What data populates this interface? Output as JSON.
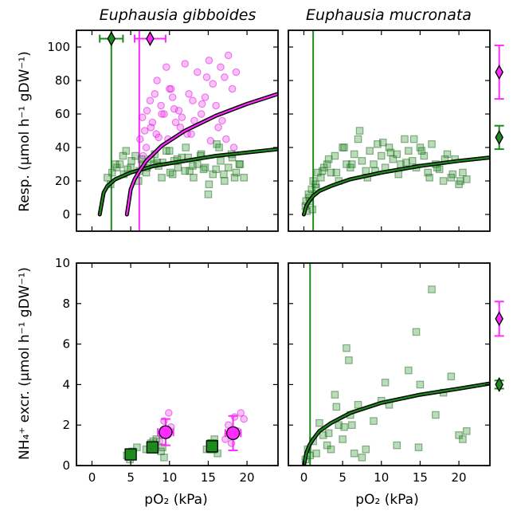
{
  "colors": {
    "green": "#1e8a1e",
    "green_dark": "#0a5c0a",
    "magenta": "#ff2aff",
    "magenta_dark": "#cc00cc",
    "frame": "#000000"
  },
  "labels": {
    "title_left": "Euphausia gibboides",
    "title_right": "Euphausia mucronata",
    "ylabel_top": "Resp. (µmol h⁻¹ gDW⁻¹)",
    "ylabel_bottom": "NH₄⁺ excr. (µmol h⁻¹ gDW⁻¹)",
    "xlabel_left": "pO₂ (kPa)",
    "xlabel_right": "pO₂ (kPa)"
  },
  "chart_data": [
    {
      "panel": "top-left",
      "type": "scatter",
      "title": "Euphausia gibboides",
      "ylabel": "Resp. (µmol h⁻¹ gDW⁻¹)",
      "xlim": [
        -2,
        24
      ],
      "ylim": [
        -10,
        110
      ],
      "xticks": [
        0,
        5,
        10,
        15,
        20
      ],
      "yticks": [
        0,
        20,
        40,
        60,
        80,
        100
      ],
      "show_xtick_labels": false,
      "series": [
        {
          "color": "magenta",
          "marker": "circle",
          "x": [
            6.2,
            6.5,
            6.8,
            7.1,
            7.5,
            7.8,
            8.1,
            8.4,
            8.9,
            9.3,
            9.6,
            10.0,
            10.4,
            10.8,
            11.2,
            11.6,
            12.0,
            12.5,
            13.0,
            13.6,
            14.1,
            14.6,
            15.1,
            15.6,
            16.0,
            16.6,
            17.1,
            17.6,
            18.1,
            18.6,
            7.0,
            7.6,
            8.3,
            9.0,
            9.8,
            10.6,
            11.4,
            12.3,
            13.2,
            14.2,
            15.3,
            16.3,
            17.3,
            18.3,
            6.6,
            8.6,
            10.2,
            12.8,
            14.8,
            16.8
          ],
          "y": [
            45,
            58,
            50,
            62,
            68,
            55,
            72,
            80,
            65,
            60,
            88,
            75,
            70,
            55,
            62,
            58,
            90,
            72,
            68,
            85,
            60,
            70,
            92,
            78,
            65,
            88,
            82,
            95,
            75,
            85,
            40,
            52,
            48,
            60,
            45,
            63,
            52,
            48,
            56,
            66,
            44,
            52,
            45,
            40,
            35,
            46,
            75,
            48,
            82,
            56
          ]
        },
        {
          "color": "green",
          "marker": "square",
          "x": [
            2.0,
            2.6,
            3.2,
            3.6,
            4.1,
            4.6,
            5.1,
            5.6,
            6.1,
            6.6,
            7.1,
            7.6,
            8.1,
            8.6,
            9.1,
            9.6,
            10.1,
            10.6,
            11.1,
            11.6,
            12.1,
            12.6,
            13.1,
            13.6,
            14.1,
            14.6,
            15.1,
            15.6,
            16.1,
            16.6,
            17.1,
            17.6,
            18.1,
            18.6,
            19.1,
            19.6,
            3.0,
            4.0,
            5.0,
            6.0,
            7.0,
            8.0,
            9.0,
            10.0,
            11.0,
            12.0,
            13.0,
            14.0,
            15.0,
            16.0,
            17.0,
            18.0,
            19.0,
            2.4,
            4.4,
            6.4,
            8.4,
            10.4,
            12.4,
            14.4,
            16.4,
            18.4
          ],
          "y": [
            22,
            25,
            28,
            30,
            24,
            27,
            32,
            35,
            26,
            30,
            28,
            33,
            36,
            29,
            31,
            38,
            25,
            32,
            28,
            34,
            40,
            26,
            22,
            30,
            36,
            28,
            18,
            24,
            42,
            32,
            20,
            28,
            34,
            25,
            30,
            22,
            30,
            35,
            28,
            20,
            25,
            30,
            22,
            38,
            33,
            26,
            29,
            35,
            12,
            27,
            24,
            36,
            30,
            18,
            38,
            33,
            31,
            24,
            34,
            27,
            40,
            22
          ]
        }
      ],
      "fits": [
        {
          "color": "green",
          "x": [
            1.0,
            1.5,
            2.0,
            3.0,
            5.0,
            8.0,
            12.0,
            16.0,
            20.0,
            24.0
          ],
          "y": [
            0,
            13,
            17,
            21,
            25,
            29,
            32,
            35,
            37,
            39
          ]
        },
        {
          "color": "magenta",
          "x": [
            4.5,
            5.0,
            5.5,
            6.0,
            7.0,
            9.0,
            12.0,
            16.0,
            20.0,
            24.0
          ],
          "y": [
            0,
            15,
            21,
            25,
            32,
            41,
            50,
            59,
            66,
            72
          ]
        }
      ],
      "vlines": [
        {
          "color": "green",
          "x": 2.5
        },
        {
          "color": "magenta",
          "x": 6.1
        }
      ],
      "points": [
        {
          "color": "green",
          "marker": "diamond",
          "x": 2.5,
          "y": 105,
          "xerr": 1.5
        },
        {
          "color": "magenta",
          "marker": "diamond",
          "x": 7.5,
          "y": 105,
          "xerr": 2.0
        }
      ]
    },
    {
      "panel": "top-right",
      "type": "scatter",
      "title": "Euphausia mucronata",
      "xlim": [
        -2,
        24
      ],
      "ylim": [
        -10,
        110
      ],
      "xticks": [
        0,
        5,
        10,
        15,
        20
      ],
      "yticks": [
        0,
        20,
        40,
        60,
        80,
        100
      ],
      "show_xtick_labels": false,
      "show_ytick_labels": false,
      "series": [
        {
          "color": "green",
          "marker": "square",
          "x": [
            0.2,
            0.4,
            0.6,
            0.8,
            1.0,
            1.2,
            1.5,
            1.8,
            2.2,
            2.6,
            3.0,
            3.5,
            4.0,
            4.5,
            5.0,
            5.5,
            6.0,
            6.5,
            7.0,
            7.5,
            8.0,
            8.5,
            9.0,
            9.5,
            10.0,
            10.5,
            11.0,
            11.5,
            12.0,
            12.5,
            13.0,
            13.5,
            14.0,
            14.5,
            15.0,
            15.5,
            16.0,
            16.5,
            17.0,
            17.5,
            18.0,
            18.5,
            19.0,
            19.5,
            20.0,
            20.5,
            21.0,
            0.3,
            0.7,
            1.1,
            1.6,
            2.4,
            3.2,
            4.2,
            5.2,
            6.2,
            7.2,
            8.2,
            9.2,
            10.2,
            11.2,
            12.2,
            13.2,
            14.2,
            15.2,
            16.2,
            17.2,
            18.2,
            19.2,
            20.2
          ],
          "y": [
            5,
            2,
            12,
            8,
            15,
            20,
            18,
            25,
            22,
            28,
            30,
            25,
            35,
            20,
            40,
            30,
            28,
            36,
            45,
            32,
            26,
            38,
            30,
            42,
            35,
            28,
            40,
            33,
            36,
            30,
            45,
            38,
            32,
            28,
            40,
            35,
            25,
            42,
            30,
            27,
            20,
            36,
            22,
            33,
            18,
            25,
            21,
            8,
            10,
            3,
            16,
            26,
            33,
            25,
            40,
            30,
            50,
            22,
            26,
            43,
            37,
            24,
            31,
            45,
            38,
            22,
            28,
            33,
            24,
            20
          ]
        }
      ],
      "fits": [
        {
          "color": "green",
          "x": [
            0.0,
            0.3,
            0.7,
            1.2,
            2.0,
            3.5,
            6.0,
            10.0,
            15.0,
            20.0,
            24.0
          ],
          "y": [
            0,
            5,
            8,
            11,
            14,
            17,
            21,
            25,
            29,
            32,
            34
          ]
        }
      ],
      "vlines": [
        {
          "color": "green",
          "x": 1.2
        }
      ],
      "points": [
        {
          "color": "magenta",
          "marker": "diamond",
          "x": 25.2,
          "y": 85,
          "yerr": 16
        },
        {
          "color": "green",
          "marker": "diamond",
          "x": 25.2,
          "y": 46,
          "yerr": 7
        }
      ]
    },
    {
      "panel": "bottom-left",
      "type": "scatter",
      "ylabel": "NH₄⁺ excr. (µmol h⁻¹ gDW⁻¹)",
      "xlabel": "pO₂ (kPa)",
      "xlim": [
        -2,
        24
      ],
      "ylim": [
        0,
        10
      ],
      "xticks": [
        0,
        5,
        10,
        15,
        20
      ],
      "yticks": [
        0,
        2,
        4,
        6,
        8,
        10
      ],
      "series": [
        {
          "color": "magenta",
          "marker": "circle",
          "x": [
            8.7,
            9.0,
            9.3,
            9.6,
            9.9,
            10.2,
            17.2,
            17.6,
            18.0,
            18.4,
            18.8,
            19.2,
            19.6
          ],
          "y": [
            1.2,
            1.5,
            2.2,
            1.7,
            2.6,
            1.9,
            1.3,
            2.0,
            1.1,
            2.4,
            1.7,
            2.6,
            2.3
          ]
        },
        {
          "color": "green",
          "marker": "square",
          "x": [
            4.5,
            5.2,
            5.8,
            7.0,
            7.6,
            8.3,
            8.9,
            9.3,
            14.8,
            15.3,
            15.8,
            16.2,
            4.9,
            7.9,
            9.1
          ],
          "y": [
            0.5,
            0.7,
            0.9,
            0.8,
            1.1,
            1.3,
            0.7,
            0.4,
            0.8,
            1.1,
            1.3,
            0.6,
            0.3,
            1.2,
            0.9
          ]
        }
      ],
      "points": [
        {
          "color": "magenta",
          "marker": "circle",
          "x": 9.5,
          "y": 1.65,
          "xerr": 1.0,
          "yerr": 0.65
        },
        {
          "color": "magenta",
          "marker": "circle",
          "x": 18.2,
          "y": 1.6,
          "xerr": 1.0,
          "yerr": 0.85
        },
        {
          "color": "green",
          "marker": "square",
          "x": 5.0,
          "y": 0.55,
          "xerr": 0.3,
          "yerr": 0.25
        },
        {
          "color": "green",
          "marker": "square",
          "x": 7.8,
          "y": 0.9,
          "xerr": 0.4,
          "yerr": 0.25
        },
        {
          "color": "green",
          "marker": "square",
          "x": 15.5,
          "y": 0.95,
          "xerr": 0.6,
          "yerr": 0.3
        }
      ]
    },
    {
      "panel": "bottom-right",
      "type": "scatter",
      "xlabel": "pO₂ (kPa)",
      "xlim": [
        -2,
        24
      ],
      "ylim": [
        0,
        10
      ],
      "xticks": [
        0,
        5,
        10,
        15,
        20
      ],
      "yticks": [
        0,
        2,
        4,
        6,
        8,
        10
      ],
      "show_ytick_labels": false,
      "series": [
        {
          "color": "green",
          "marker": "square",
          "x": [
            0.2,
            0.5,
            0.8,
            1.2,
            1.6,
            2.0,
            2.5,
            3.0,
            3.5,
            4.0,
            4.5,
            5.0,
            5.5,
            5.8,
            6.0,
            6.5,
            7.0,
            7.5,
            8.0,
            9.0,
            10.0,
            11.0,
            12.0,
            13.5,
            14.5,
            15.0,
            16.5,
            17.0,
            18.0,
            19.0,
            20.0,
            21.0,
            20.5,
            4.2,
            5.2,
            3.2,
            6.2,
            10.5,
            14.8
          ],
          "y": [
            0.3,
            0.8,
            0.5,
            1.2,
            0.6,
            2.1,
            1.5,
            1.0,
            0.8,
            3.5,
            2.0,
            1.3,
            5.8,
            5.2,
            2.5,
            0.6,
            3.0,
            0.4,
            0.8,
            2.2,
            3.2,
            3.0,
            1.0,
            4.7,
            6.6,
            4.0,
            8.7,
            2.5,
            3.6,
            4.4,
            1.5,
            1.7,
            1.3,
            2.9,
            1.9,
            1.6,
            2.0,
            4.1,
            0.9
          ]
        }
      ],
      "fits": [
        {
          "color": "green",
          "x": [
            0.0,
            0.3,
            0.7,
            1.2,
            2.0,
            3.5,
            6.0,
            10.0,
            15.0,
            20.0,
            24.0
          ],
          "y": [
            0,
            0.6,
            1.0,
            1.3,
            1.7,
            2.1,
            2.6,
            3.1,
            3.5,
            3.8,
            4.05
          ]
        }
      ],
      "vlines": [
        {
          "color": "green",
          "x": 0.8
        }
      ],
      "points": [
        {
          "color": "magenta",
          "marker": "diamond",
          "x": 25.2,
          "y": 7.25,
          "yerr": 0.85
        },
        {
          "color": "green",
          "marker": "diamond",
          "x": 25.2,
          "y": 4.0,
          "yerr": 0.2
        }
      ]
    }
  ]
}
